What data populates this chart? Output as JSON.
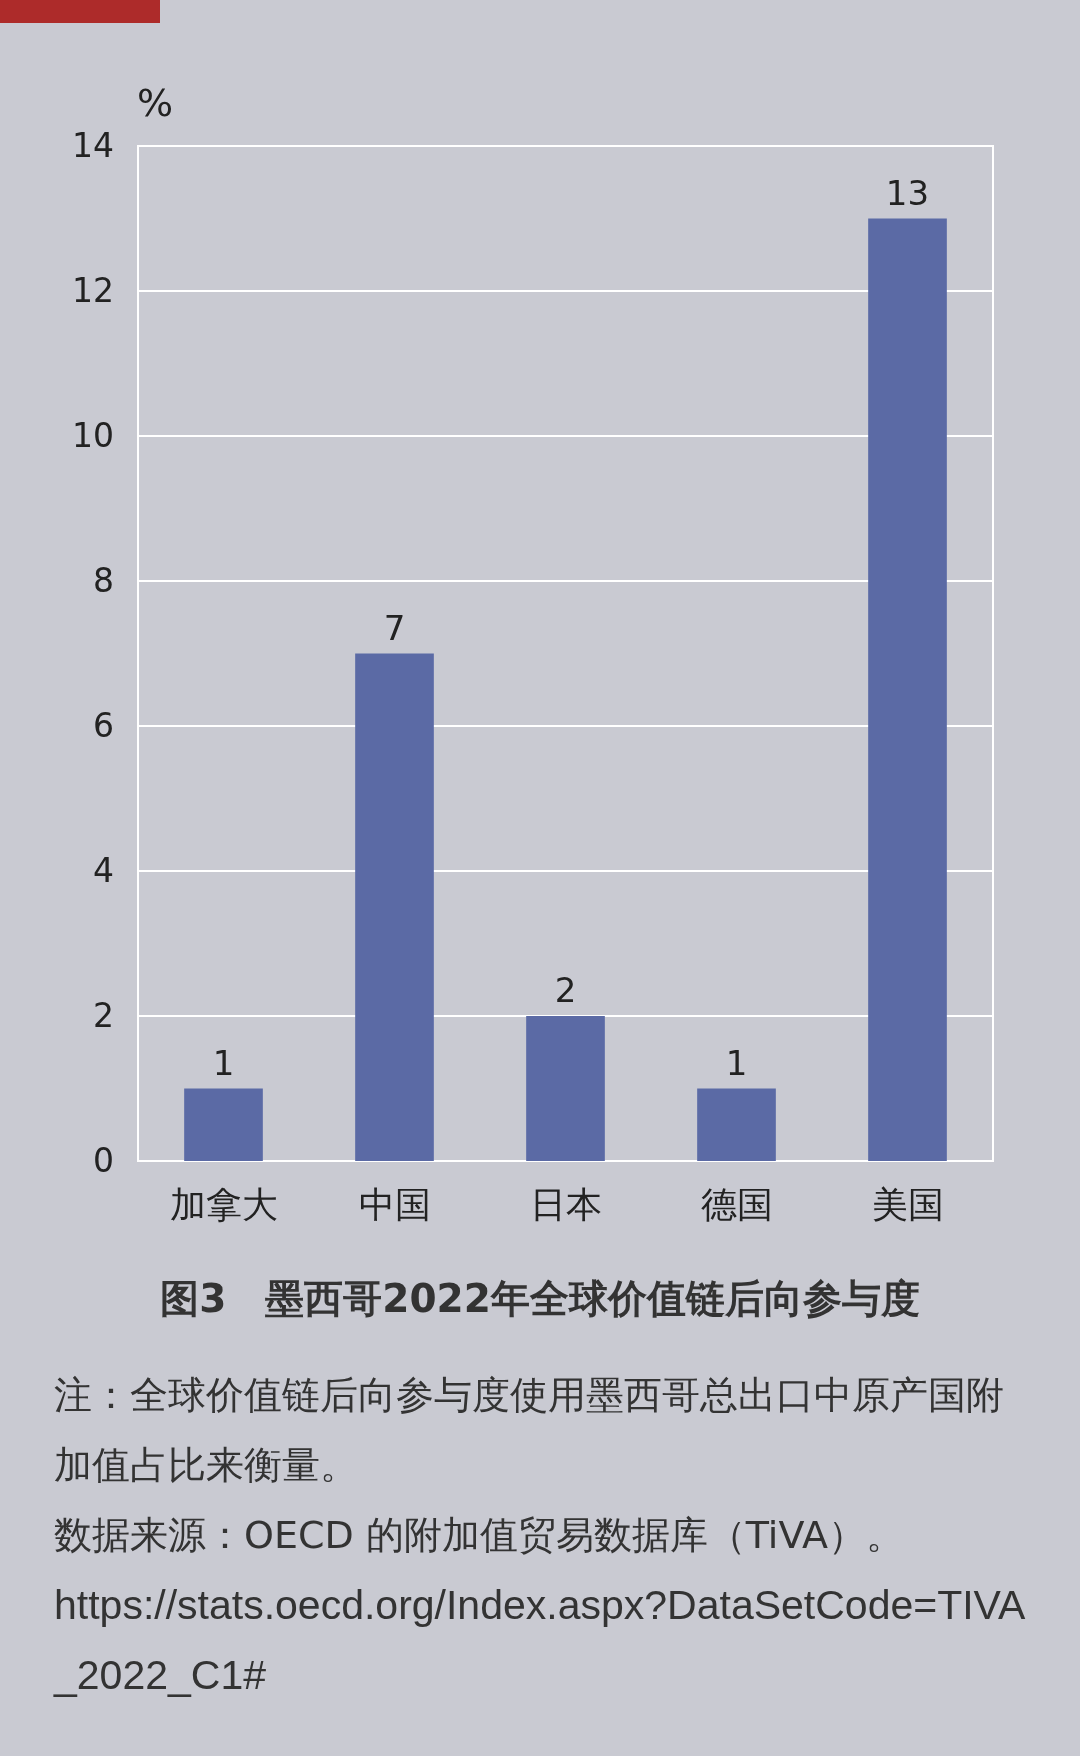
{
  "chart_data": {
    "type": "bar",
    "title": "图3　墨西哥2022年全球价值链后向参与度",
    "ylabel": "%",
    "categories": [
      "加拿大",
      "中国",
      "日本",
      "德国",
      "美国"
    ],
    "values": [
      1,
      7,
      2,
      1,
      13
    ],
    "color": "#5b6aa5",
    "ylim": [
      0,
      14
    ],
    "yticks": [
      0,
      2,
      4,
      6,
      8,
      10,
      12,
      14
    ],
    "grid": "y",
    "data_labels": true,
    "annotations": [
      "注：全球价值链后向参与度使用墨西哥总出口中原产国附加值占比来衡量。",
      "数据来源：OECD 的附加值贸易数据库（TiVA）。",
      "https://stats.oecd.org/Index.aspx?DataSetCode=TIVA_2022_C1#"
    ]
  }
}
